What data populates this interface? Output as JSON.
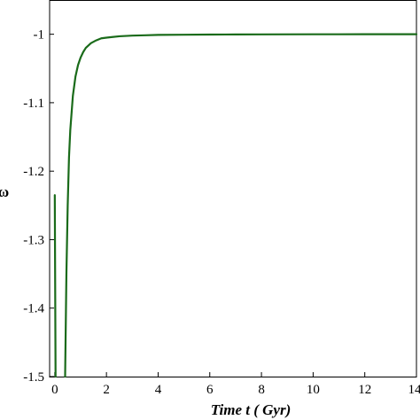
{
  "chart_data": {
    "type": "line",
    "title": "",
    "xlabel": "Time t  ( Gyr)",
    "ylabel": "ω",
    "xlim": [
      -0.2,
      14
    ],
    "ylim": [
      -1.5,
      -0.95
    ],
    "x_ticks": [
      0,
      2,
      4,
      6,
      8,
      10,
      12,
      14
    ],
    "x_tick_labels": [
      "0",
      "2",
      "4",
      "6",
      "8",
      "10",
      "12",
      "14"
    ],
    "y_ticks": [
      -1.5,
      -1.4,
      -1.3,
      -1.2,
      -1.1,
      -1.0
    ],
    "y_tick_labels": [
      "-1.5",
      "-1.4",
      "-1.3",
      "-1.2",
      "-1.1",
      "-1"
    ],
    "grid": false,
    "line_color": "#1a6b1a",
    "series": [
      {
        "values_desc": "",
        "x": [
          0.0,
          0.03,
          0.06,
          0.1,
          0.2,
          0.3,
          0.4,
          0.45,
          0.5,
          0.55,
          0.6,
          0.7,
          0.8,
          0.9,
          1.0,
          1.1,
          1.2,
          1.4,
          1.6,
          1.8,
          2.0,
          2.5,
          3.0,
          3.5,
          4.0,
          5.0,
          6.0,
          7.0,
          8.0,
          10.0,
          12.0,
          14.0
        ],
        "y": [
          -1.235,
          -1.5,
          null,
          null,
          null,
          null,
          -1.5,
          -1.35,
          -1.25,
          -1.18,
          -1.14,
          -1.09,
          -1.062,
          -1.045,
          -1.034,
          -1.026,
          -1.02,
          -1.013,
          -1.009,
          -1.006,
          -1.005,
          -1.003,
          -1.002,
          -1.0015,
          -1.001,
          -1.0007,
          -1.0005,
          -1.0003,
          -1.0002,
          -1.0001,
          -1.0,
          -1.0
        ]
      }
    ]
  }
}
